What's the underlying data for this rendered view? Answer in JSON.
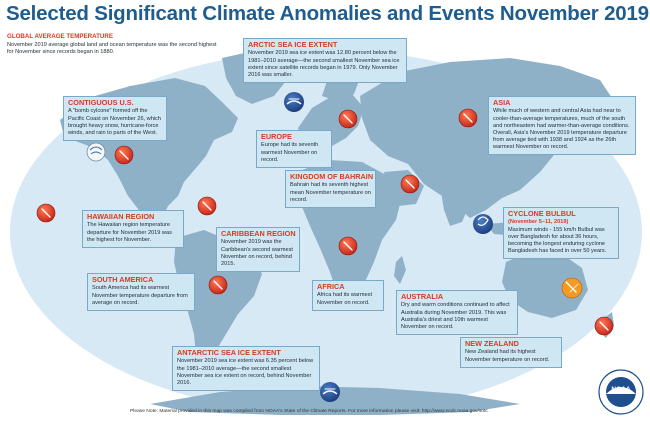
{
  "title": "Selected Significant Climate Anomalies and Events November 2019",
  "global": {
    "heading": "GLOBAL AVERAGE TEMPERATURE",
    "text": "November 2019 average global land and ocean temperature was the second highest for November since records began in 1880."
  },
  "events": {
    "arctic": {
      "heading": "ARCTIC SEA ICE EXTENT",
      "text": "November 2019 sea ice extent was 12.80 percent below the 1981–2010 average—the second smallest November sea ice extent since satellite records began in 1979. Only November 2016 was smaller."
    },
    "contiguous_us": {
      "heading": "CONTIGUOUS U.S.",
      "text": "A \"bomb cylcone\" formed off the Pacific Coast on November 26, which brought heavy snow, hurricane-force winds, and rain to parts of the West."
    },
    "asia": {
      "heading": "ASIA",
      "text": "While much of western and central Asia had near to cooler-than-average temperatures, much of the south and northeastern had warmer-than-average conditions. Overall, Asia's November 2019 temperature departure from average tied with 1938 and 1924 as the 26th warmest November on record."
    },
    "europe": {
      "heading": "EUROPE",
      "text": "Europe had its seventh warmest November on record."
    },
    "bahrain": {
      "heading": "KINGDOM OF BAHRAIN",
      "text": "Bahrain had its seventh highest mean November temperature on record."
    },
    "hawaii": {
      "heading": "HAWAIIAN REGION",
      "text": "The Hawaiian region temperature departure for November 2019 was the highest for November."
    },
    "caribbean": {
      "heading": "CARIBBEAN REGION",
      "text": "November 2019 was the Caribbean's second warmest November on record, behind 2015."
    },
    "bulbul": {
      "heading": "CYCLONE BULBUL",
      "subheading": "(November 5–11, 2019)",
      "text": "Maximum winds - 155 km/h Bulbul was over Bangladesh for about 36 hours, becoming the longest enduring cyclone Bangladesh has faced in over 50 years."
    },
    "south_america": {
      "heading": "SOUTH AMERICA",
      "text": "South America had its warmest November temperature departure from average on record."
    },
    "africa": {
      "heading": "AFRICA",
      "text": "Africa had its warmest November on record."
    },
    "australia": {
      "heading": "AUSTRALIA",
      "text": "Dry and warm conditions continued to affect Australia during November 2019. This was Australia's driest and 10th warmest November on record."
    },
    "new_zealand": {
      "heading": "NEW ZEALAND",
      "text": "New Zealand had its highest November temperature on record."
    },
    "antarctic": {
      "heading": "ANTARCTIC SEA ICE EXTENT",
      "text": "November 2019 sea ice extent was 6.35 percent below the 1981–2010 average—the second smallest November sea ice extent on record, behind November 2016."
    }
  },
  "footnote": "Please Note: Material provided in this map was compiled from NOAA's State of the Climate Reports. For more information please visit: http://www.ncdc.noaa.gov/sotc",
  "logo": {
    "center_text": "NOAA",
    "ring_top": "NATIONAL OCEANIC AND ATMOSPHERIC ADMINISTRATION",
    "ring_bottom": "U.S. DEPARTMENT OF COMMERCE"
  },
  "icons": {
    "warm": "thermometer-warm-icon",
    "cyclone": "cyclone-icon",
    "sea_ice": "sea-ice-icon",
    "drought": "drought-icon",
    "storm": "bomb-cyclone-icon"
  },
  "colors": {
    "title": "#1f5d8e",
    "heading": "#d93a22",
    "ocean": "#d6e9f5",
    "land": "#8fb1c7",
    "warm_icon": "#e03a22",
    "box": "#cfe6f3"
  }
}
